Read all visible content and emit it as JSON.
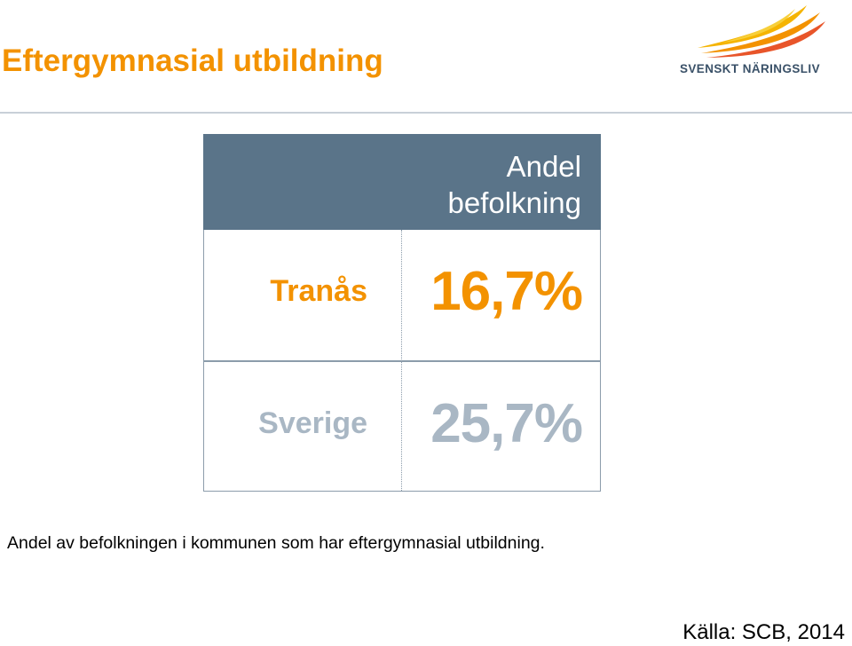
{
  "header": {
    "title": "Eftergymnasial utbildning",
    "logo_text": "SVENSKT NÄRINGSLIV",
    "logo_icon": "bird-wing-logo"
  },
  "table": {
    "column_header": "Andel befolkning",
    "rows": [
      {
        "label": "Tranås",
        "value": "16,7%"
      },
      {
        "label": "Sverige",
        "value": "25,7%"
      }
    ]
  },
  "caption": "Andel av befolkningen i kommunen som har eftergymnasial utbildning.",
  "source": "Källa: SCB, 2014",
  "colors": {
    "title": "#f39200",
    "header_bg": "#5a7489",
    "highlight": "#f39200",
    "muted": "#a9b7c4",
    "logo_text": "#3a5168",
    "rule": "#c8d0d8"
  }
}
